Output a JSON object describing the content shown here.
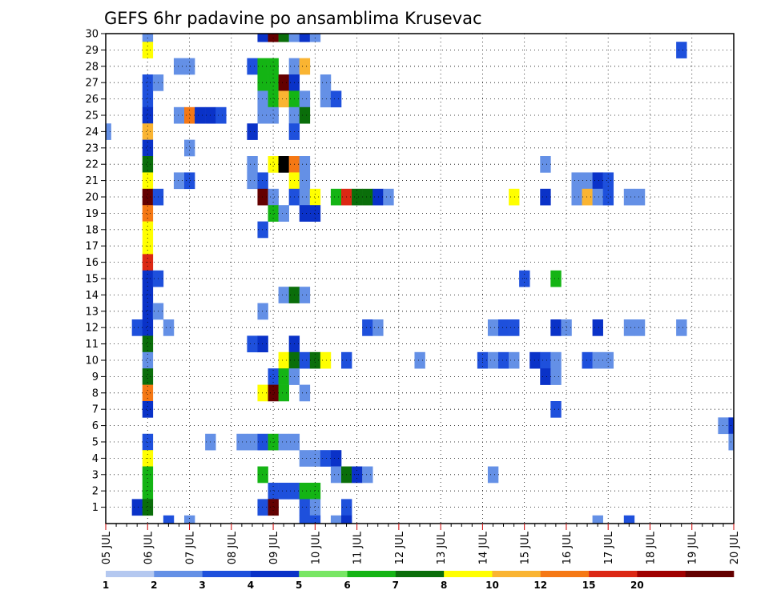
{
  "chart_data": {
    "type": "heatmap",
    "title": "GEFS 6hr padavine po ansamblima Krusevac",
    "xlabel": "",
    "ylabel": "",
    "x_ticks": [
      "05 JUL",
      "06 JUL",
      "07 JUL",
      "08 JUL",
      "09 JUL",
      "10 JUL",
      "11 JUL",
      "12 JUL",
      "13 JUL",
      "14 JUL",
      "15 JUL",
      "16 JUL",
      "17 JUL",
      "18 JUL",
      "19 JUL",
      "20 JUL"
    ],
    "x_unit": "6-hour step",
    "x_range": [
      0,
      60
    ],
    "y_ticks": [
      "1",
      "2",
      "3",
      "4",
      "5",
      "6",
      "7",
      "8",
      "9",
      "10",
      "11",
      "12",
      "13",
      "14",
      "15",
      "16",
      "17",
      "18",
      "19",
      "20",
      "21",
      "22",
      "23",
      "24",
      "25",
      "26",
      "27",
      "28",
      "29",
      "30"
    ],
    "y_range": [
      0,
      30
    ],
    "grid": true,
    "colorbar": {
      "position": "bottom",
      "labels": [
        "1",
        "2",
        "3",
        "4",
        "5",
        "6",
        "7",
        "8",
        "10",
        "12",
        "15",
        "20"
      ],
      "colors": [
        "#b4c8f0",
        "#6490e6",
        "#1e50dc",
        "#0a32c8",
        "#78e664",
        "#14b414",
        "#0a6e0a",
        "#ffff00",
        "#fab432",
        "#f57814",
        "#dc2814",
        "#a00000",
        "#640000"
      ]
    },
    "cells": [
      [
        4,
        30,
        1
      ],
      [
        15,
        30,
        3
      ],
      [
        16,
        30,
        12
      ],
      [
        17,
        30,
        6
      ],
      [
        18,
        30,
        1
      ],
      [
        19,
        30,
        3
      ],
      [
        20,
        30,
        1
      ],
      [
        4,
        29,
        7
      ],
      [
        55,
        29,
        2
      ],
      [
        7,
        28,
        1
      ],
      [
        8,
        28,
        1
      ],
      [
        14,
        28,
        2
      ],
      [
        15,
        28,
        5
      ],
      [
        16,
        28,
        5
      ],
      [
        18,
        28,
        1
      ],
      [
        19,
        28,
        8
      ],
      [
        4,
        27,
        2
      ],
      [
        5,
        27,
        1
      ],
      [
        15,
        27,
        5
      ],
      [
        16,
        27,
        5
      ],
      [
        17,
        27,
        12
      ],
      [
        18,
        27,
        3
      ],
      [
        21,
        27,
        1
      ],
      [
        4,
        26,
        2
      ],
      [
        15,
        26,
        1
      ],
      [
        16,
        26,
        5
      ],
      [
        17,
        26,
        8
      ],
      [
        18,
        26,
        5
      ],
      [
        19,
        26,
        1
      ],
      [
        21,
        26,
        1
      ],
      [
        22,
        26,
        2
      ],
      [
        4,
        25,
        3
      ],
      [
        7,
        25,
        1
      ],
      [
        8,
        25,
        9
      ],
      [
        9,
        25,
        3
      ],
      [
        10,
        25,
        3
      ],
      [
        11,
        25,
        2
      ],
      [
        15,
        25,
        1
      ],
      [
        16,
        25,
        1
      ],
      [
        18,
        25,
        1
      ],
      [
        19,
        25,
        6
      ],
      [
        0,
        24,
        1
      ],
      [
        4,
        24,
        8
      ],
      [
        14,
        24,
        3
      ],
      [
        18,
        24,
        2
      ],
      [
        4,
        23,
        3
      ],
      [
        8,
        23,
        1
      ],
      [
        4,
        22,
        6
      ],
      [
        14,
        22,
        1
      ],
      [
        16,
        22,
        7
      ],
      [
        17,
        22,
        13
      ],
      [
        18,
        22,
        9
      ],
      [
        19,
        22,
        1
      ],
      [
        42,
        22,
        1
      ],
      [
        4,
        21,
        7
      ],
      [
        7,
        21,
        1
      ],
      [
        8,
        21,
        2
      ],
      [
        14,
        21,
        1
      ],
      [
        15,
        21,
        2
      ],
      [
        18,
        21,
        7
      ],
      [
        19,
        21,
        1
      ],
      [
        45,
        21,
        1
      ],
      [
        46,
        21,
        1
      ],
      [
        47,
        21,
        3
      ],
      [
        48,
        21,
        2
      ],
      [
        4,
        20,
        12
      ],
      [
        5,
        20,
        2
      ],
      [
        15,
        20,
        12
      ],
      [
        16,
        20,
        1
      ],
      [
        18,
        20,
        2
      ],
      [
        19,
        20,
        1
      ],
      [
        20,
        20,
        7
      ],
      [
        22,
        20,
        5
      ],
      [
        23,
        20,
        10
      ],
      [
        24,
        20,
        6
      ],
      [
        25,
        20,
        6
      ],
      [
        26,
        20,
        3
      ],
      [
        27,
        20,
        1
      ],
      [
        39,
        20,
        7
      ],
      [
        42,
        20,
        3
      ],
      [
        45,
        20,
        1
      ],
      [
        46,
        20,
        8
      ],
      [
        47,
        20,
        1
      ],
      [
        48,
        20,
        2
      ],
      [
        50,
        20,
        1
      ],
      [
        51,
        20,
        1
      ],
      [
        4,
        19,
        9
      ],
      [
        16,
        19,
        5
      ],
      [
        17,
        19,
        1
      ],
      [
        19,
        19,
        3
      ],
      [
        20,
        19,
        3
      ],
      [
        4,
        18,
        7
      ],
      [
        15,
        18,
        2
      ],
      [
        4,
        17,
        7
      ],
      [
        4,
        16,
        10
      ],
      [
        4,
        15,
        3
      ],
      [
        5,
        15,
        2
      ],
      [
        40,
        15,
        2
      ],
      [
        43,
        15,
        5
      ],
      [
        4,
        14,
        3
      ],
      [
        17,
        14,
        1
      ],
      [
        18,
        14,
        6
      ],
      [
        19,
        14,
        1
      ],
      [
        4,
        13,
        3
      ],
      [
        5,
        13,
        1
      ],
      [
        15,
        13,
        1
      ],
      [
        3,
        12,
        2
      ],
      [
        4,
        12,
        3
      ],
      [
        6,
        12,
        1
      ],
      [
        25,
        12,
        2
      ],
      [
        26,
        12,
        1
      ],
      [
        37,
        12,
        1
      ],
      [
        38,
        12,
        2
      ],
      [
        39,
        12,
        2
      ],
      [
        43,
        12,
        3
      ],
      [
        44,
        12,
        1
      ],
      [
        47,
        12,
        3
      ],
      [
        50,
        12,
        1
      ],
      [
        51,
        12,
        1
      ],
      [
        55,
        12,
        1
      ],
      [
        4,
        11,
        6
      ],
      [
        14,
        11,
        2
      ],
      [
        15,
        11,
        3
      ],
      [
        18,
        11,
        3
      ],
      [
        4,
        10,
        1
      ],
      [
        17,
        10,
        7
      ],
      [
        18,
        10,
        6
      ],
      [
        19,
        10,
        2
      ],
      [
        20,
        10,
        6
      ],
      [
        21,
        10,
        7
      ],
      [
        23,
        10,
        2
      ],
      [
        30,
        10,
        1
      ],
      [
        36,
        10,
        2
      ],
      [
        37,
        10,
        1
      ],
      [
        38,
        10,
        2
      ],
      [
        39,
        10,
        1
      ],
      [
        41,
        10,
        3
      ],
      [
        42,
        10,
        2
      ],
      [
        43,
        10,
        1
      ],
      [
        46,
        10,
        2
      ],
      [
        47,
        10,
        1
      ],
      [
        48,
        10,
        1
      ],
      [
        4,
        9,
        6
      ],
      [
        16,
        9,
        2
      ],
      [
        17,
        9,
        5
      ],
      [
        18,
        9,
        1
      ],
      [
        42,
        9,
        3
      ],
      [
        43,
        9,
        1
      ],
      [
        4,
        8,
        9
      ],
      [
        15,
        8,
        7
      ],
      [
        16,
        8,
        12
      ],
      [
        17,
        8,
        5
      ],
      [
        19,
        8,
        1
      ],
      [
        4,
        7,
        3
      ],
      [
        43,
        7,
        2
      ],
      [
        59,
        6,
        1
      ],
      [
        60,
        6,
        3
      ],
      [
        4,
        5,
        2
      ],
      [
        10,
        5,
        1
      ],
      [
        13,
        5,
        1
      ],
      [
        14,
        5,
        1
      ],
      [
        15,
        5,
        2
      ],
      [
        16,
        5,
        5
      ],
      [
        17,
        5,
        1
      ],
      [
        18,
        5,
        1
      ],
      [
        60,
        5,
        1
      ],
      [
        4,
        4,
        7
      ],
      [
        19,
        4,
        1
      ],
      [
        20,
        4,
        1
      ],
      [
        21,
        4,
        2
      ],
      [
        22,
        4,
        3
      ],
      [
        4,
        3,
        5
      ],
      [
        15,
        3,
        5
      ],
      [
        22,
        3,
        1
      ],
      [
        23,
        3,
        6
      ],
      [
        24,
        3,
        3
      ],
      [
        25,
        3,
        1
      ],
      [
        37,
        3,
        1
      ],
      [
        4,
        2,
        5
      ],
      [
        16,
        2,
        2
      ],
      [
        17,
        2,
        2
      ],
      [
        18,
        2,
        2
      ],
      [
        19,
        2,
        5
      ],
      [
        20,
        2,
        5
      ],
      [
        3,
        1,
        3
      ],
      [
        4,
        1,
        6
      ],
      [
        15,
        1,
        2
      ],
      [
        16,
        1,
        12
      ],
      [
        19,
        1,
        2
      ],
      [
        20,
        1,
        1
      ],
      [
        23,
        1,
        2
      ],
      [
        6,
        0,
        2
      ],
      [
        8,
        0,
        1
      ],
      [
        19,
        0,
        2
      ],
      [
        20,
        0,
        2
      ],
      [
        22,
        0,
        1
      ],
      [
        23,
        0,
        3
      ],
      [
        47,
        0,
        1
      ],
      [
        50,
        0,
        2
      ]
    ]
  }
}
